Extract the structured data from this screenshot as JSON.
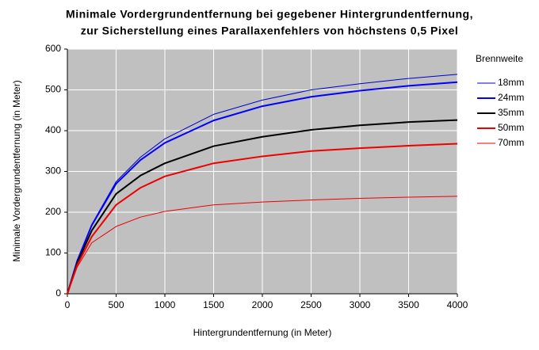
{
  "chart_data": {
    "type": "line",
    "title": [
      "Minimale Vordergrundentfernung bei gegebener Hintergrundentfernung,",
      "zur Sicherstellung eines Parallaxenfehlers von höchstens 0,5 Pixel"
    ],
    "x_label": "Hintergrundentfernung (in Meter)",
    "y_label": "Minimale Vordergrundentfernung (in Meter)",
    "legend_title": "Brennweite",
    "legend": "right",
    "grid": true,
    "background": "#c0c0c0",
    "x": [
      0,
      100,
      250,
      500,
      750,
      1000,
      1500,
      2000,
      2500,
      3000,
      3500,
      4000
    ],
    "series": [
      {
        "name": "18mm",
        "color": "#0000cc",
        "line_width": 1,
        "values": [
          0,
          80,
          170,
          275,
          335,
          380,
          440,
          475,
          500,
          515,
          528,
          538
        ]
      },
      {
        "name": "24mm",
        "color": "#0000ff",
        "line_width": 2,
        "values": [
          0,
          80,
          168,
          270,
          328,
          370,
          425,
          460,
          483,
          498,
          510,
          519
        ]
      },
      {
        "name": "35mm",
        "color": "#000000",
        "line_width": 2,
        "values": [
          0,
          75,
          155,
          245,
          290,
          320,
          362,
          385,
          402,
          413,
          421,
          426
        ]
      },
      {
        "name": "50mm",
        "color": "#ee0000",
        "line_width": 2,
        "values": [
          0,
          70,
          140,
          218,
          260,
          288,
          320,
          337,
          350,
          357,
          363,
          368
        ]
      },
      {
        "name": "70mm",
        "color": "#ee0000",
        "line_width": 1,
        "values": [
          0,
          65,
          125,
          165,
          188,
          202,
          218,
          225,
          230,
          234,
          237,
          239
        ]
      }
    ],
    "xlim": [
      0,
      4000
    ],
    "xticks": [
      0,
      500,
      1000,
      1500,
      2000,
      2500,
      3000,
      3500,
      4000
    ],
    "ylim": [
      0,
      600
    ],
    "yticks": [
      0,
      100,
      200,
      300,
      400,
      500,
      600
    ]
  }
}
